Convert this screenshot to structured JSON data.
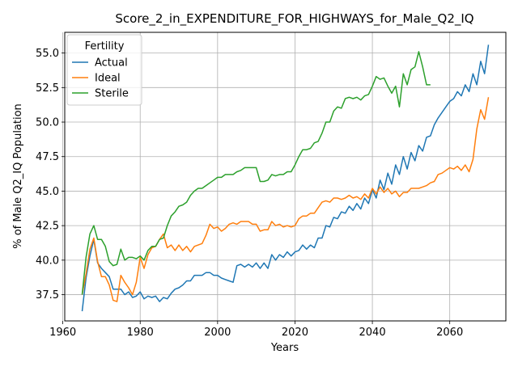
{
  "chart_data": {
    "type": "line",
    "title": "Score_2_in_EXPENDITURE_FOR_HIGHWAYS_for_Male_Q2_IQ",
    "xlabel": "Years",
    "ylabel": "% of Male Q2_IQ Population",
    "xlim": [
      1960.5,
      2074.5
    ],
    "ylim": [
      35.6,
      56.5
    ],
    "xticks": [
      1960,
      1980,
      2000,
      2020,
      2040,
      2060
    ],
    "yticks": [
      37.5,
      40.0,
      42.5,
      45.0,
      47.5,
      50.0,
      52.5,
      55.0
    ],
    "ytick_labels": [
      "37.5",
      "40.0",
      "42.5",
      "45.0",
      "47.5",
      "50.0",
      "52.5",
      "55.0"
    ],
    "grid": true,
    "legend": {
      "title": "Fertility",
      "placement": "top-left"
    },
    "series": [
      {
        "name": "Actual",
        "color": "#1f77b4",
        "x": [
          1965,
          1966,
          1967,
          1968,
          1969,
          1970,
          1971,
          1972,
          1973,
          1974,
          1975,
          1976,
          1977,
          1978,
          1979,
          1980,
          1981,
          1982,
          1983,
          1984,
          1985,
          1986,
          1987,
          1988,
          1989,
          1990,
          1991,
          1992,
          1993,
          1994,
          1995,
          1996,
          1997,
          1998,
          1999,
          2000,
          2001,
          2002,
          2003,
          2004,
          2005,
          2006,
          2007,
          2008,
          2009,
          2010,
          2011,
          2012,
          2013,
          2014,
          2015,
          2016,
          2017,
          2018,
          2019,
          2020,
          2021,
          2022,
          2023,
          2024,
          2025,
          2026,
          2027,
          2028,
          2029,
          2030,
          2031,
          2032,
          2033,
          2034,
          2035,
          2036,
          2037,
          2038,
          2039,
          2040,
          2041,
          2042,
          2043,
          2044,
          2045,
          2046,
          2047,
          2048,
          2049,
          2050,
          2051,
          2052,
          2053,
          2054,
          2055,
          2056,
          2057,
          2058,
          2059,
          2060,
          2061,
          2062,
          2063,
          2064,
          2065,
          2066,
          2067,
          2068,
          2069,
          2070
        ],
        "y": [
          36.3,
          38.7,
          40.3,
          41.5,
          39.8,
          39.4,
          39.1,
          38.8,
          37.9,
          37.9,
          37.9,
          37.5,
          37.7,
          37.3,
          37.4,
          37.7,
          37.2,
          37.4,
          37.3,
          37.4,
          37.0,
          37.3,
          37.2,
          37.6,
          37.9,
          38.0,
          38.2,
          38.5,
          38.5,
          38.9,
          38.9,
          38.9,
          39.1,
          39.1,
          38.9,
          38.9,
          38.7,
          38.6,
          38.5,
          38.4,
          39.6,
          39.7,
          39.5,
          39.7,
          39.5,
          39.8,
          39.4,
          39.8,
          39.4,
          40.4,
          40.0,
          40.4,
          40.2,
          40.6,
          40.3,
          40.6,
          40.7,
          41.1,
          40.8,
          41.1,
          40.9,
          41.6,
          41.6,
          42.5,
          42.4,
          43.1,
          43.0,
          43.5,
          43.4,
          43.9,
          43.6,
          44.1,
          43.7,
          44.5,
          44.1,
          45.1,
          44.5,
          45.8,
          45.1,
          46.3,
          45.5,
          46.9,
          46.2,
          47.5,
          46.6,
          47.8,
          47.2,
          48.3,
          47.9,
          48.9,
          49.0,
          49.8,
          50.3,
          50.7,
          51.1,
          51.5,
          51.7,
          52.2,
          51.9,
          52.7,
          52.2,
          53.5,
          52.7,
          54.4,
          53.5,
          55.6
        ]
      },
      {
        "name": "Ideal",
        "color": "#ff7f0e",
        "x": [
          1965,
          1966,
          1967,
          1968,
          1969,
          1970,
          1971,
          1972,
          1973,
          1974,
          1975,
          1976,
          1977,
          1978,
          1979,
          1980,
          1981,
          1982,
          1983,
          1984,
          1985,
          1986,
          1987,
          1988,
          1989,
          1990,
          1991,
          1992,
          1993,
          1994,
          1995,
          1996,
          1997,
          1998,
          1999,
          2000,
          2001,
          2002,
          2003,
          2004,
          2005,
          2006,
          2007,
          2008,
          2009,
          2010,
          2011,
          2012,
          2013,
          2014,
          2015,
          2016,
          2017,
          2018,
          2019,
          2020,
          2021,
          2022,
          2023,
          2024,
          2025,
          2026,
          2027,
          2028,
          2029,
          2030,
          2031,
          2032,
          2033,
          2034,
          2035,
          2036,
          2037,
          2038,
          2039,
          2040,
          2041,
          2042,
          2043,
          2044,
          2045,
          2046,
          2047,
          2048,
          2049,
          2050,
          2051,
          2052,
          2053,
          2054,
          2055,
          2056,
          2057,
          2058,
          2059,
          2060,
          2061,
          2062,
          2063,
          2064,
          2065,
          2066,
          2067,
          2068,
          2069,
          2070
        ],
        "y": [
          37.5,
          39.0,
          40.8,
          41.6,
          39.9,
          38.8,
          38.8,
          38.2,
          37.1,
          37.0,
          38.9,
          38.4,
          38.0,
          37.5,
          38.4,
          40.2,
          39.4,
          40.4,
          40.9,
          41.0,
          41.5,
          41.9,
          40.9,
          41.1,
          40.7,
          41.1,
          40.7,
          41.0,
          40.6,
          41.0,
          41.1,
          41.2,
          41.8,
          42.6,
          42.3,
          42.4,
          42.1,
          42.3,
          42.6,
          42.7,
          42.6,
          42.8,
          42.8,
          42.8,
          42.6,
          42.6,
          42.1,
          42.2,
          42.2,
          42.8,
          42.5,
          42.6,
          42.4,
          42.5,
          42.4,
          42.5,
          43.0,
          43.2,
          43.2,
          43.4,
          43.4,
          43.8,
          44.2,
          44.3,
          44.2,
          44.5,
          44.5,
          44.4,
          44.5,
          44.7,
          44.5,
          44.6,
          44.4,
          44.8,
          44.5,
          45.2,
          44.8,
          45.3,
          44.9,
          45.2,
          44.8,
          45.0,
          44.6,
          44.9,
          44.9,
          45.2,
          45.2,
          45.2,
          45.3,
          45.4,
          45.6,
          45.7,
          46.2,
          46.3,
          46.5,
          46.7,
          46.6,
          46.8,
          46.5,
          46.9,
          46.4,
          47.3,
          49.5,
          50.9,
          50.2,
          51.8
        ]
      },
      {
        "name": "Sterile",
        "color": "#2ca02c",
        "x": [
          1965,
          1966,
          1967,
          1968,
          1969,
          1970,
          1971,
          1972,
          1973,
          1974,
          1975,
          1976,
          1977,
          1978,
          1979,
          1980,
          1981,
          1982,
          1983,
          1984,
          1985,
          1986,
          1987,
          1988,
          1989,
          1990,
          1991,
          1992,
          1993,
          1994,
          1995,
          1996,
          1997,
          1998,
          1999,
          2000,
          2001,
          2002,
          2003,
          2004,
          2005,
          2006,
          2007,
          2008,
          2009,
          2010,
          2011,
          2012,
          2013,
          2014,
          2015,
          2016,
          2017,
          2018,
          2019,
          2020,
          2021,
          2022,
          2023,
          2024,
          2025,
          2026,
          2027,
          2028,
          2029,
          2030,
          2031,
          2032,
          2033,
          2034,
          2035,
          2036,
          2037,
          2038,
          2039,
          2040,
          2041,
          2042,
          2043,
          2044,
          2045,
          2046,
          2047,
          2048,
          2049,
          2050,
          2051,
          2052,
          2053,
          2054,
          2055
        ],
        "y": [
          37.5,
          40.2,
          41.9,
          42.5,
          41.5,
          41.5,
          41.0,
          39.9,
          39.6,
          39.7,
          40.8,
          40.0,
          40.2,
          40.2,
          40.1,
          40.3,
          40.0,
          40.7,
          41.0,
          41.0,
          41.5,
          41.6,
          42.5,
          43.2,
          43.5,
          43.9,
          44.0,
          44.2,
          44.7,
          45.0,
          45.2,
          45.2,
          45.4,
          45.6,
          45.8,
          46.0,
          46.0,
          46.2,
          46.2,
          46.2,
          46.4,
          46.5,
          46.7,
          46.7,
          46.7,
          46.7,
          45.7,
          45.7,
          45.8,
          46.2,
          46.1,
          46.2,
          46.2,
          46.4,
          46.4,
          46.9,
          47.5,
          48.0,
          48.0,
          48.1,
          48.5,
          48.6,
          49.2,
          50.0,
          50.0,
          50.8,
          51.1,
          51.0,
          51.7,
          51.8,
          51.7,
          51.8,
          51.6,
          51.9,
          52.0,
          52.6,
          53.3,
          53.1,
          53.2,
          52.6,
          52.1,
          52.6,
          51.1,
          53.5,
          52.7,
          53.8,
          54.0,
          55.1,
          54.0,
          52.7,
          52.7
        ]
      }
    ]
  }
}
